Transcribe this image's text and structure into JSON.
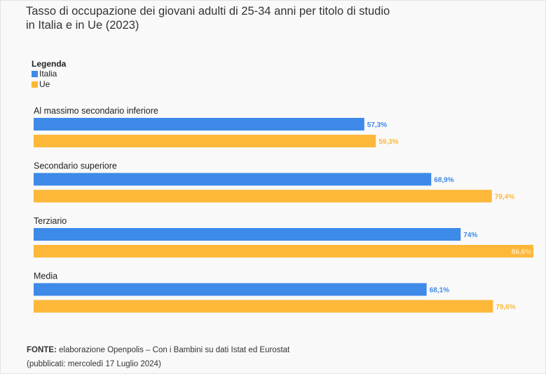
{
  "chart_data": {
    "type": "bar",
    "orientation": "horizontal",
    "title": "Tasso di occupazione dei giovani adulti di 25-34 anni per titolo di studio in Italia e in Ue (2023)",
    "legend_title": "Legenda",
    "categories": [
      "Al massimo secondario inferiore",
      "Secondario superiore",
      "Terziario",
      "Media"
    ],
    "series": [
      {
        "name": "Italia",
        "color": "#3d8ae8",
        "values": [
          57.3,
          68.9,
          74,
          68.1
        ],
        "labels": [
          "57,3%",
          "68,9%",
          "74%",
          "68,1%"
        ]
      },
      {
        "name": "Ue",
        "color": "#fdb83a",
        "values": [
          59.3,
          79.4,
          86.6,
          79.6
        ],
        "labels": [
          "59,3%",
          "79,4%",
          "86,6%",
          "79,6%"
        ]
      }
    ],
    "xlim": [
      0,
      86.6
    ],
    "grid": false,
    "legend_position": "top-left"
  },
  "source": {
    "label": "FONTE:",
    "text": "elaborazione Openpolis – Con i Bambini su dati Istat ed Eurostat",
    "published": "(pubblicati: mercoledì 17 Luglio 2024)"
  }
}
